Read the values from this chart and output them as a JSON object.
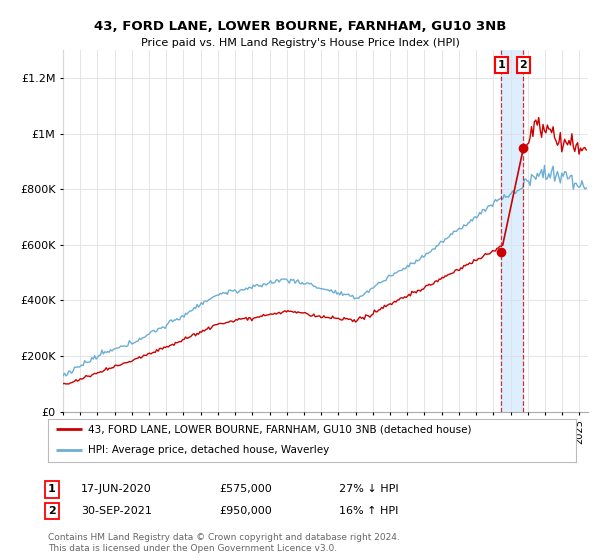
{
  "title": "43, FORD LANE, LOWER BOURNE, FARNHAM, GU10 3NB",
  "subtitle": "Price paid vs. HM Land Registry's House Price Index (HPI)",
  "ylabel_ticks": [
    "£0",
    "£200K",
    "£400K",
    "£600K",
    "£800K",
    "£1M",
    "£1.2M"
  ],
  "ylim": [
    0,
    1300000
  ],
  "xlim_start": 1995.0,
  "xlim_end": 2025.5,
  "hpi_color": "#6baed6",
  "price_color": "#cc0000",
  "shade_color": "#ddeeff",
  "marker1_date": 2020.46,
  "marker1_price": 575000,
  "marker2_date": 2021.75,
  "marker2_price": 950000,
  "legend_line1": "43, FORD LANE, LOWER BOURNE, FARNHAM, GU10 3NB (detached house)",
  "legend_line2": "HPI: Average price, detached house, Waverley",
  "footnote": "Contains HM Land Registry data © Crown copyright and database right 2024.\nThis data is licensed under the Open Government Licence v3.0.",
  "background_color": "#ffffff",
  "grid_color": "#e0e0e0"
}
